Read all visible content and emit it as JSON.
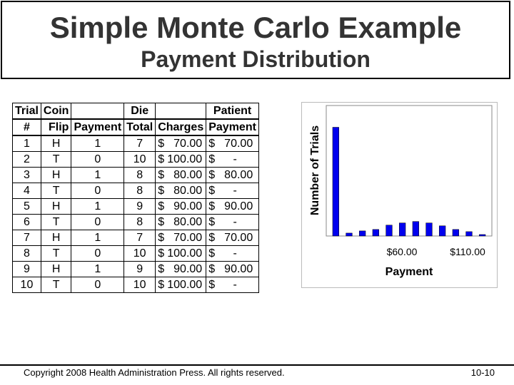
{
  "slide": {
    "title": "Simple Monte Carlo Example",
    "subtitle": "Payment Distribution"
  },
  "table": {
    "headers": [
      [
        "Trial",
        "#"
      ],
      [
        "Coin",
        "Flip"
      ],
      [
        "",
        "Payment"
      ],
      [
        "Die",
        "Total"
      ],
      [
        "",
        "Charges"
      ],
      [
        "Patient",
        "Payment"
      ]
    ],
    "rows": [
      {
        "trial": "1",
        "coin": "H",
        "payment": "1",
        "die": "7",
        "charges": "70.00",
        "patient": "70.00"
      },
      {
        "trial": "2",
        "coin": "T",
        "payment": "0",
        "die": "10",
        "charges": "100.00",
        "patient": "-"
      },
      {
        "trial": "3",
        "coin": "H",
        "payment": "1",
        "die": "8",
        "charges": "80.00",
        "patient": "80.00"
      },
      {
        "trial": "4",
        "coin": "T",
        "payment": "0",
        "die": "8",
        "charges": "80.00",
        "patient": "-"
      },
      {
        "trial": "5",
        "coin": "H",
        "payment": "1",
        "die": "9",
        "charges": "90.00",
        "patient": "90.00"
      },
      {
        "trial": "6",
        "coin": "T",
        "payment": "0",
        "die": "8",
        "charges": "80.00",
        "patient": "-"
      },
      {
        "trial": "7",
        "coin": "H",
        "payment": "1",
        "die": "7",
        "charges": "70.00",
        "patient": "70.00"
      },
      {
        "trial": "8",
        "coin": "T",
        "payment": "0",
        "die": "10",
        "charges": "100.00",
        "patient": "-"
      },
      {
        "trial": "9",
        "coin": "H",
        "payment": "1",
        "die": "9",
        "charges": "90.00",
        "patient": "90.00"
      },
      {
        "trial": "10",
        "coin": "T",
        "payment": "0",
        "die": "10",
        "charges": "100.00",
        "patient": "-"
      }
    ],
    "currency_symbol": "$"
  },
  "chart_data": {
    "type": "bar",
    "xlabel": "Payment",
    "ylabel": "Number of Trials",
    "x_tick_labels": [
      "$60.00",
      "$110.00"
    ],
    "values": [
      150,
      4,
      7,
      9,
      15,
      18,
      20,
      18,
      14,
      9,
      6,
      2
    ],
    "ylim": [
      0,
      180
    ],
    "bar_color": "#0000ee",
    "grid": false
  },
  "footer": {
    "copyright": "Copyright 2008 Health Administration Press. All rights reserved.",
    "page": "10-10"
  }
}
